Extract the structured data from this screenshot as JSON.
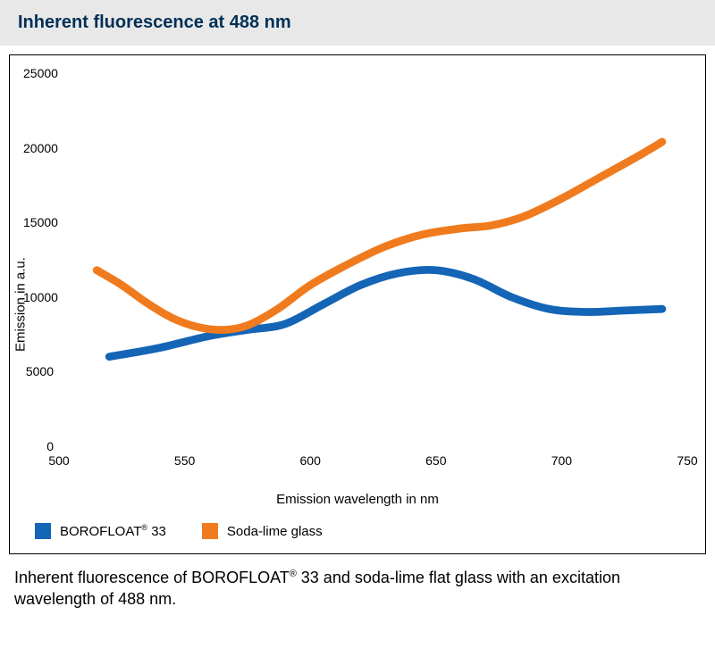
{
  "title": "Inherent fluorescence at 488 nm",
  "caption_prefix": "Inherent fluorescence of BOROFLOAT",
  "caption_reg": "®",
  "caption_suffix": " 33 and soda-lime flat glass with an excitation wavelength of 488 nm.",
  "chart": {
    "type": "line",
    "xlabel": "Emission wavelength in nm",
    "ylabel": "Emission in a.u.",
    "xlim": [
      500,
      750
    ],
    "ylim": [
      0,
      25000
    ],
    "xticks": [
      500,
      550,
      600,
      650,
      700,
      750
    ],
    "yticks": [
      0,
      5000,
      10000,
      15000,
      20000,
      25000
    ],
    "background_color": "#ffffff",
    "border_color": "#000000",
    "line_width": 4,
    "series": [
      {
        "name_prefix": "BOROFLOAT",
        "name_reg": "®",
        "name_suffix": " 33",
        "color": "#1565b6",
        "points": [
          [
            520,
            6000
          ],
          [
            540,
            6600
          ],
          [
            560,
            7400
          ],
          [
            575,
            7800
          ],
          [
            590,
            8200
          ],
          [
            605,
            9500
          ],
          [
            620,
            10800
          ],
          [
            635,
            11600
          ],
          [
            650,
            11800
          ],
          [
            665,
            11200
          ],
          [
            680,
            10000
          ],
          [
            695,
            9200
          ],
          [
            710,
            9000
          ],
          [
            725,
            9100
          ],
          [
            740,
            9200
          ]
        ]
      },
      {
        "name_prefix": "Soda-lime glass",
        "name_reg": "",
        "name_suffix": "",
        "color": "#f07b1e",
        "points": [
          [
            515,
            11800
          ],
          [
            525,
            10800
          ],
          [
            535,
            9600
          ],
          [
            545,
            8600
          ],
          [
            555,
            8000
          ],
          [
            565,
            7800
          ],
          [
            575,
            8100
          ],
          [
            587,
            9200
          ],
          [
            600,
            10800
          ],
          [
            615,
            12200
          ],
          [
            630,
            13400
          ],
          [
            645,
            14200
          ],
          [
            660,
            14600
          ],
          [
            672,
            14800
          ],
          [
            685,
            15400
          ],
          [
            700,
            16600
          ],
          [
            715,
            18000
          ],
          [
            730,
            19400
          ],
          [
            740,
            20400
          ]
        ]
      }
    ]
  },
  "title_bg": "#e8e8e8",
  "title_color": "#002f56"
}
